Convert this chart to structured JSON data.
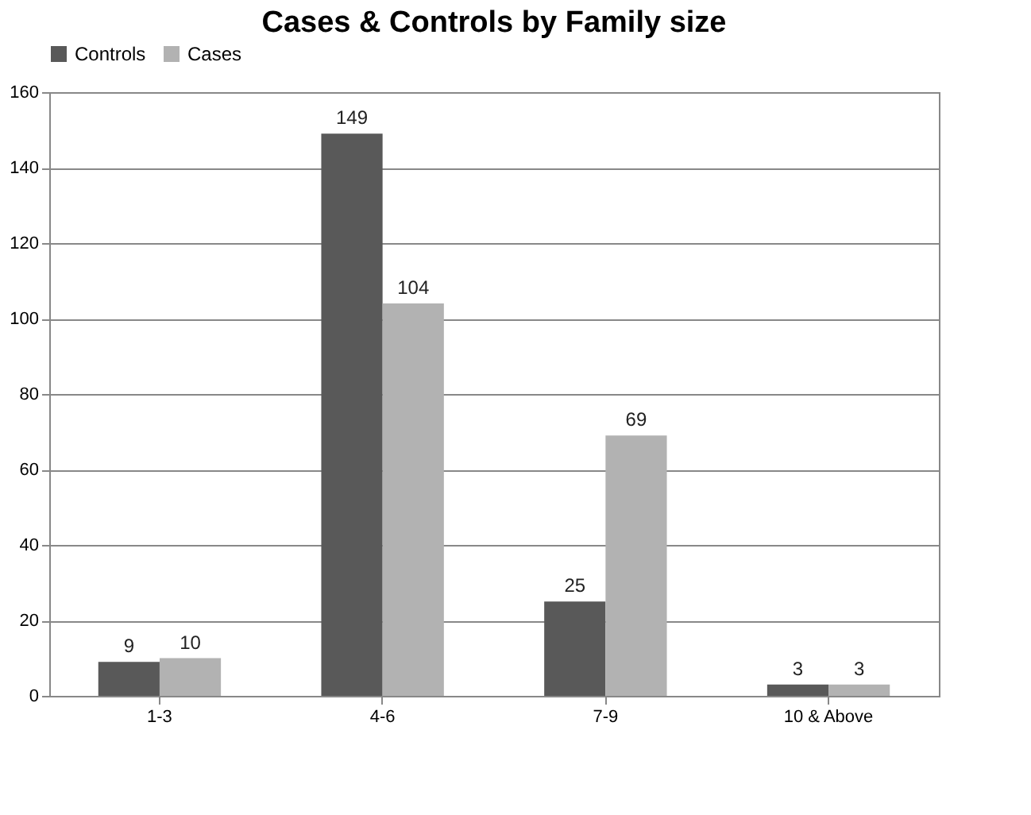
{
  "chart_data": {
    "type": "bar",
    "title": "Cases & Controls by Family size",
    "categories": [
      "1-3",
      "4-6",
      "7-9",
      "10 & Above"
    ],
    "series": [
      {
        "name": "Controls",
        "color": "#595959",
        "values": [
          9,
          149,
          25,
          3
        ]
      },
      {
        "name": "Cases",
        "color": "#b2b2b2",
        "values": [
          10,
          104,
          69,
          3
        ]
      }
    ],
    "ylim": [
      0,
      160
    ],
    "yticks": [
      0,
      20,
      40,
      60,
      80,
      100,
      120,
      140,
      160
    ],
    "grid": "y",
    "legend": "top",
    "data_labels": true
  }
}
